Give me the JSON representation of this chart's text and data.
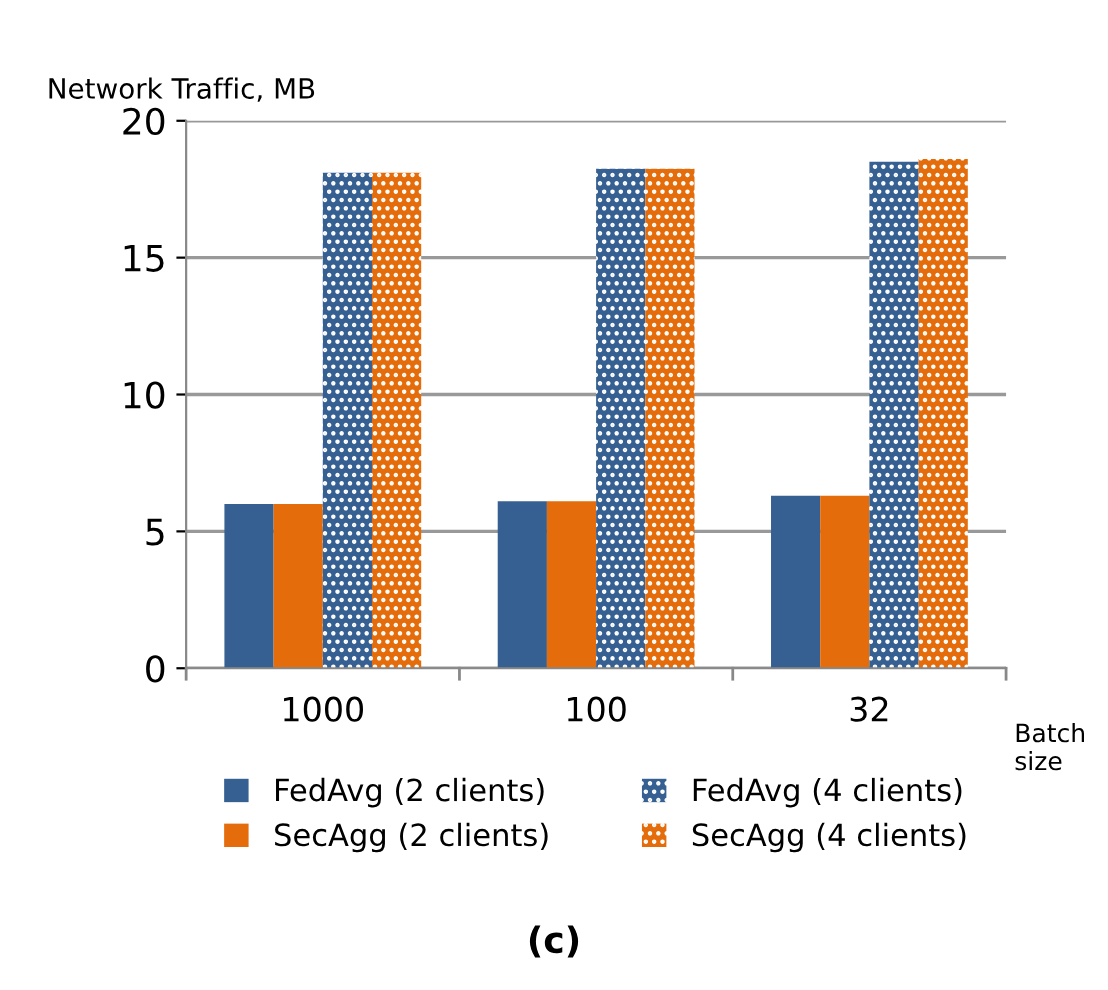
{
  "chart_data": {
    "type": "bar",
    "ylabel": "Network Traffic, MB",
    "xlabel": "Batch size",
    "categories": [
      "1000",
      "100",
      "32"
    ],
    "series": [
      {
        "name": "FedAvg (2 clients)",
        "color": "#366092",
        "values": [
          6.0,
          6.1,
          6.3
        ]
      },
      {
        "name": "SecAgg (2 clients)",
        "color": "#e46c0a",
        "values": [
          6.0,
          6.1,
          6.3
        ]
      },
      {
        "name": "FedAvg (4 clients)",
        "color": "#366092",
        "values": [
          18.1,
          18.25,
          18.5
        ]
      },
      {
        "name": "SecAgg (4 clients)",
        "color": "#e46c0a",
        "values": [
          18.1,
          18.25,
          18.6
        ]
      }
    ],
    "ylim": [
      0,
      20
    ],
    "yticks": [
      0,
      5,
      10,
      15,
      20
    ],
    "grid": "y",
    "legend": "bottom",
    "annotations": [
      "(c)"
    ]
  }
}
